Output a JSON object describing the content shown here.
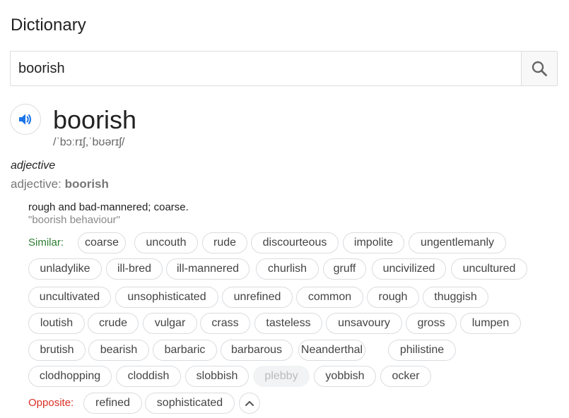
{
  "header": {
    "title": "Dictionary"
  },
  "search": {
    "value": "boorish"
  },
  "entry": {
    "word": "boorish",
    "phonetic": "/ˈbɔːrɪʃ,ˈbʊərɪʃ/",
    "part_of_speech": "adjective",
    "form_label": "adjective:",
    "form_word": "boorish",
    "definition": "rough and bad-mannered; coarse.",
    "example": "\"boorish behaviour\""
  },
  "similar": {
    "label": "Similar:",
    "words": [
      "coarse",
      "uncouth",
      "rude",
      "discourteous",
      "impolite",
      "ungentlemanly",
      "unladylike",
      "ill-bred",
      "ill-mannered",
      "churlish",
      "gruff",
      "uncivilized",
      "uncultured",
      "uncultivated",
      "unsophisticated",
      "unrefined",
      "common",
      "rough",
      "thuggish",
      "loutish",
      "crude",
      "vulgar",
      "crass",
      "tasteless",
      "unsavoury",
      "gross",
      "lumpen",
      "brutish",
      "bearish",
      "barbaric",
      "barbarous",
      "Neanderthal",
      "philistine",
      "clodhopping",
      "cloddish",
      "slobbish",
      "plebby",
      "yobbish",
      "ocker"
    ],
    "disabled": [
      "plebby"
    ]
  },
  "opposite": {
    "label": "Opposite:",
    "words": [
      "refined",
      "sophisticated"
    ]
  },
  "icons": {
    "search": "search-icon",
    "speaker": "speaker-icon",
    "collapse": "chevron-up-icon"
  },
  "colors": {
    "similar_label": "#2e7d32",
    "opposite_label": "#d93025",
    "speaker": "#1a73e8"
  }
}
